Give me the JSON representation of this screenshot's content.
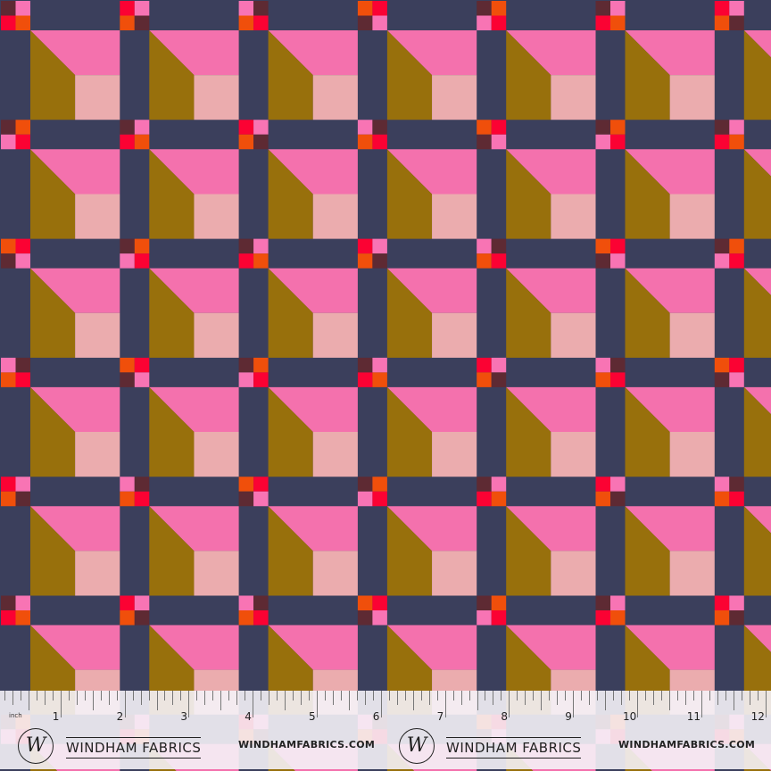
{
  "colors": {
    "navy": "#3b3f5c",
    "pink": "#f471ad",
    "olive": "#98700c",
    "blush": "#ebacae",
    "maroon": "#5e2a33",
    "hotpink": "#f874b4",
    "red": "#fb0233",
    "orange": "#f04f0b"
  },
  "ruler": {
    "unit": "inch",
    "numbers": [
      "1",
      "2",
      "3",
      "4",
      "5",
      "6",
      "7",
      "8",
      "9",
      "10",
      "11",
      "12"
    ]
  },
  "branding": [
    {
      "logo_letter": "W",
      "brand": "WINDHAM FABRICS",
      "url": "WINDHAMFABRICS.COM"
    },
    {
      "logo_letter": "W",
      "brand": "WINDHAM FABRICS",
      "url": "WINDHAMFABRICS.COM"
    }
  ]
}
